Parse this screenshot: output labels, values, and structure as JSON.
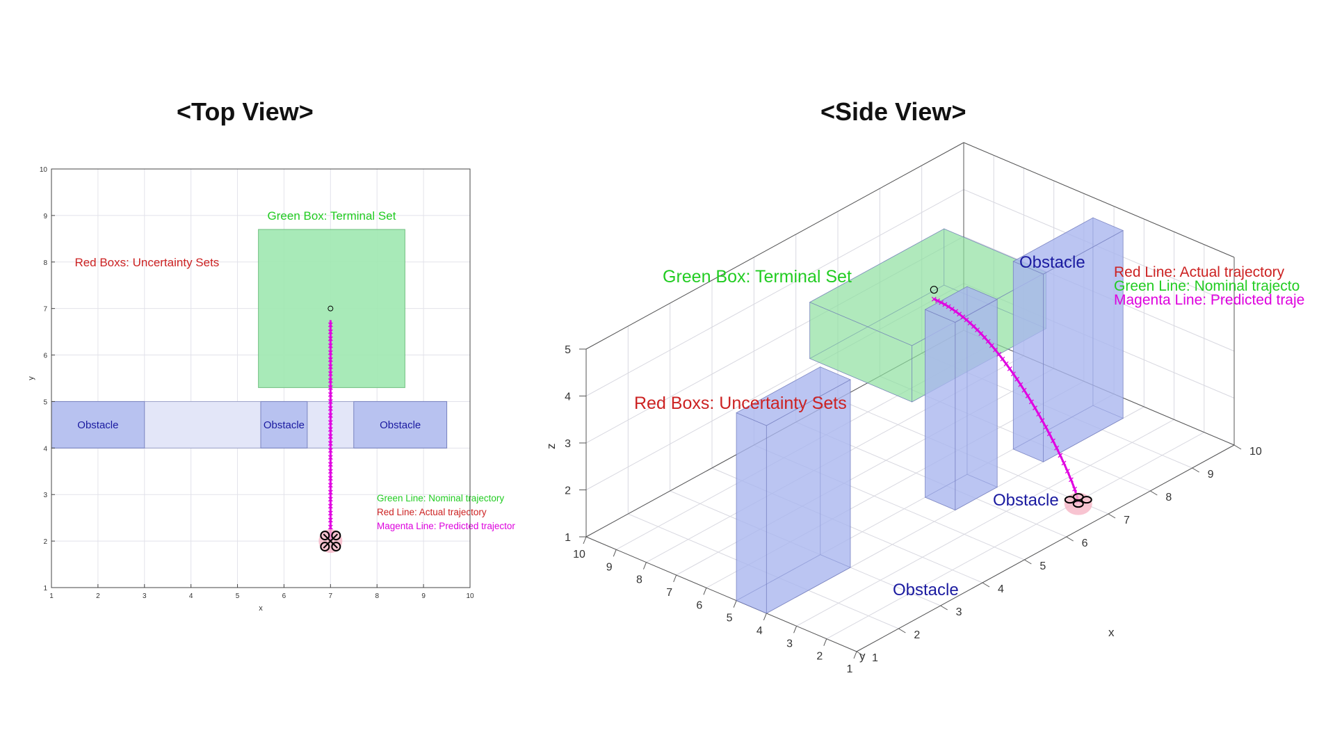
{
  "view_titles": {
    "top": "<Top View>",
    "side": "<Side View>"
  },
  "colors": {
    "terminal_fill": "#9fe8b0",
    "obstacle_fill": "#aab6ee",
    "uncertainty_fill": "#e3e6f8",
    "trajectory": "#e000e0",
    "text_green": "#22cc22",
    "text_red": "#cc2222",
    "text_magenta": "#dd00dd",
    "text_obstacle": "#1a1aa0"
  },
  "chart_data": [
    {
      "type": "scatter",
      "view": "top",
      "title": "<Top View>",
      "xlabel": "x",
      "ylabel": "y",
      "xlim": [
        1,
        10
      ],
      "ylim": [
        1,
        10
      ],
      "xticks": [
        1,
        2,
        3,
        4,
        5,
        6,
        7,
        8,
        9,
        10
      ],
      "yticks": [
        1,
        2,
        3,
        4,
        5,
        6,
        7,
        8,
        9,
        10
      ],
      "grid": true,
      "terminal_set": {
        "x": [
          5.45,
          8.6
        ],
        "y": [
          5.3,
          8.7
        ],
        "label": "Green Box: Terminal Set"
      },
      "uncertainty_label": "Red Boxs: Uncertainty Sets",
      "uncertainty_band": {
        "x": [
          1,
          9.5
        ],
        "y": [
          4,
          5
        ]
      },
      "obstacles": [
        {
          "x": [
            1,
            3
          ],
          "y": [
            4,
            5
          ],
          "label": "Obstacle"
        },
        {
          "x": [
            5.5,
            6.5
          ],
          "y": [
            4,
            5
          ],
          "label": "Obstacle"
        },
        {
          "x": [
            7.5,
            9.5
          ],
          "y": [
            4,
            5
          ],
          "label": "Obstacle"
        }
      ],
      "trajectory": {
        "x": 7.0,
        "y_start": 2.0,
        "y_end": 6.75
      },
      "target": {
        "x": 7.0,
        "y": 7.0
      },
      "drone": {
        "x": 7.0,
        "y": 2.0
      },
      "legend": [
        {
          "text": "Green Line: Nominal trajectory",
          "color": "green"
        },
        {
          "text": "Red Line: Actual trajectory",
          "color": "red"
        },
        {
          "text": "Magenta Line: Predicted trajector",
          "color": "magenta"
        }
      ]
    },
    {
      "type": "scatter",
      "view": "side",
      "title": "<Side View>",
      "xlabel": "x",
      "ylabel": "y",
      "zlabel": "z",
      "xticks": [
        1,
        2,
        3,
        4,
        5,
        6,
        7,
        8,
        9,
        10
      ],
      "yticks": [
        1,
        2,
        3,
        4,
        5,
        6,
        7,
        8,
        9,
        10
      ],
      "zticks": [
        1,
        2,
        3,
        4,
        5
      ],
      "grid": true,
      "labels": {
        "terminal": "Green Box: Terminal Set",
        "uncertainty": "Red Boxs: Uncertainty Sets",
        "obstacle": "Obstacle"
      },
      "legend": [
        {
          "text": "Red Line: Actual trajectory",
          "color": "red"
        },
        {
          "text": "Green Line: Nominal trajecto",
          "color": "green"
        },
        {
          "text": "Magenta Line: Predicted traje",
          "color": "magenta"
        }
      ]
    }
  ]
}
